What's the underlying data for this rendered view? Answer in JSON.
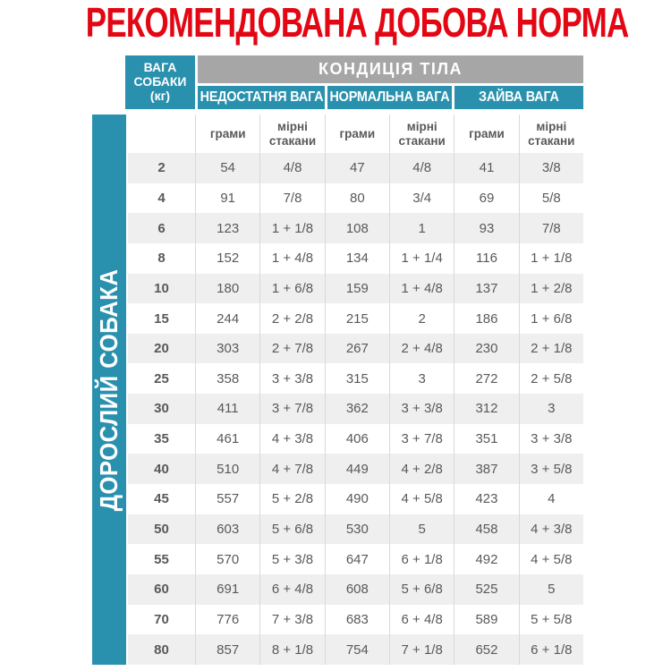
{
  "title": "РЕКОМЕНДОВАНА ДОБОВА НОРМА",
  "colors": {
    "title_red": "#E30613",
    "teal": "#2991AE",
    "gray_band": "#A7A6A6",
    "row_stripe": "#EFEFEF",
    "text_dark": "#58595B",
    "separator": "#D9D9D9"
  },
  "sidebar": {
    "label": "ДОРОСЛИЙ СОБАКА"
  },
  "table": {
    "weight_header_text": "ВАГА\nСОБАКИ\n(кг)",
    "condition_header": "КОНДИЦІЯ ТІЛА",
    "group_headers": [
      "НЕДОСТАТНЯ ВАГА",
      "НОРМАЛЬНА ВАГА",
      "ЗАЙВА ВАГА"
    ],
    "unit_headers": [
      "грами",
      "мірні стакани",
      "грами",
      "мірні стакани",
      "грами",
      "мірні стакани"
    ],
    "rows": [
      {
        "weight": "2",
        "values": [
          "54",
          "4/8",
          "47",
          "4/8",
          "41",
          "3/8"
        ]
      },
      {
        "weight": "4",
        "values": [
          "91",
          "7/8",
          "80",
          "3/4",
          "69",
          "5/8"
        ]
      },
      {
        "weight": "6",
        "values": [
          "123",
          "1 + 1/8",
          "108",
          "1",
          "93",
          "7/8"
        ]
      },
      {
        "weight": "8",
        "values": [
          "152",
          "1 + 4/8",
          "134",
          "1 + 1/4",
          "116",
          "1 + 1/8"
        ]
      },
      {
        "weight": "10",
        "values": [
          "180",
          "1 + 6/8",
          "159",
          "1 + 4/8",
          "137",
          "1 + 2/8"
        ]
      },
      {
        "weight": "15",
        "values": [
          "244",
          "2 + 2/8",
          "215",
          "2",
          "186",
          "1 + 6/8"
        ]
      },
      {
        "weight": "20",
        "values": [
          "303",
          "2 + 7/8",
          "267",
          "2 + 4/8",
          "230",
          "2 + 1/8"
        ]
      },
      {
        "weight": "25",
        "values": [
          "358",
          "3 + 3/8",
          "315",
          "3",
          "272",
          "2 + 5/8"
        ]
      },
      {
        "weight": "30",
        "values": [
          "411",
          "3 + 7/8",
          "362",
          "3 + 3/8",
          "312",
          "3"
        ]
      },
      {
        "weight": "35",
        "values": [
          "461",
          "4 + 3/8",
          "406",
          "3 + 7/8",
          "351",
          "3 + 3/8"
        ]
      },
      {
        "weight": "40",
        "values": [
          "510",
          "4 + 7/8",
          "449",
          "4 + 2/8",
          "387",
          "3 + 5/8"
        ]
      },
      {
        "weight": "45",
        "values": [
          "557",
          "5 + 2/8",
          "490",
          "4 + 5/8",
          "423",
          "4"
        ]
      },
      {
        "weight": "50",
        "values": [
          "603",
          "5 + 6/8",
          "530",
          "5",
          "458",
          "4 + 3/8"
        ]
      },
      {
        "weight": "55",
        "values": [
          "570",
          "5 + 3/8",
          "647",
          "6 + 1/8",
          "492",
          "4 + 5/8"
        ]
      },
      {
        "weight": "60",
        "values": [
          "691",
          "6 + 4/8",
          "608",
          "5 + 6/8",
          "525",
          "5"
        ]
      },
      {
        "weight": "70",
        "values": [
          "776",
          "7 + 3/8",
          "683",
          "6 + 4/8",
          "589",
          "5 + 5/8"
        ]
      },
      {
        "weight": "80",
        "values": [
          "857",
          "8 + 1/8",
          "754",
          "7 + 1/8",
          "652",
          "6 + 1/8"
        ]
      }
    ]
  }
}
